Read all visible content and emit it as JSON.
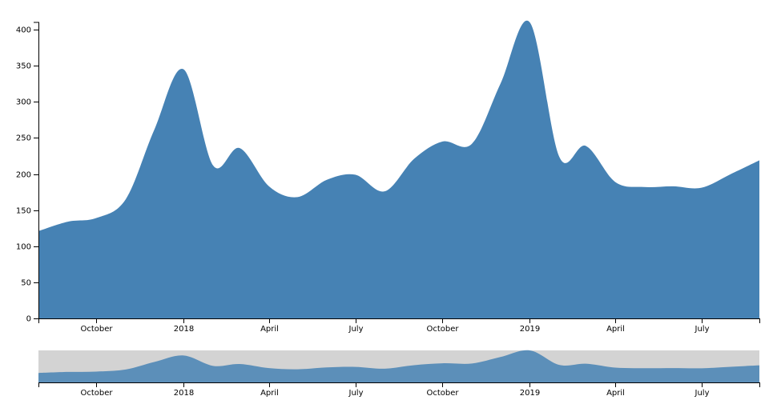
{
  "chart_data": {
    "type": "area",
    "title": "",
    "xlabel": "",
    "ylabel": "",
    "color": "#4682b4",
    "context_area_color": "#4682b4",
    "brush_color": "#d3d3d3",
    "y_ticks": [
      0,
      50,
      100,
      150,
      200,
      250,
      300,
      350,
      400
    ],
    "ylim": [
      0,
      410
    ],
    "xlim": [
      "2017-08-01",
      "2019-08-31"
    ],
    "x_ticks": [
      {
        "date": "2017-10-01",
        "label": "October"
      },
      {
        "date": "2018-01-01",
        "label": "2018"
      },
      {
        "date": "2018-04-01",
        "label": "April"
      },
      {
        "date": "2018-07-01",
        "label": "July"
      },
      {
        "date": "2018-10-01",
        "label": "October"
      },
      {
        "date": "2019-01-01",
        "label": "2019"
      },
      {
        "date": "2019-04-01",
        "label": "April"
      },
      {
        "date": "2019-07-01",
        "label": "July"
      }
    ],
    "points": [
      {
        "x": "2017-08-01",
        "y": 121
      },
      {
        "x": "2017-09-01",
        "y": 134
      },
      {
        "x": "2017-10-01",
        "y": 139
      },
      {
        "x": "2017-11-01",
        "y": 165
      },
      {
        "x": "2017-12-01",
        "y": 261
      },
      {
        "x": "2018-01-01",
        "y": 345
      },
      {
        "x": "2018-02-01",
        "y": 212
      },
      {
        "x": "2018-03-01",
        "y": 236
      },
      {
        "x": "2018-04-01",
        "y": 183
      },
      {
        "x": "2018-05-01",
        "y": 168
      },
      {
        "x": "2018-06-01",
        "y": 192
      },
      {
        "x": "2018-07-01",
        "y": 199
      },
      {
        "x": "2018-08-01",
        "y": 176
      },
      {
        "x": "2018-09-01",
        "y": 221
      },
      {
        "x": "2018-10-01",
        "y": 245
      },
      {
        "x": "2018-11-01",
        "y": 242
      },
      {
        "x": "2018-12-01",
        "y": 325
      },
      {
        "x": "2019-01-01",
        "y": 410
      },
      {
        "x": "2019-02-01",
        "y": 224
      },
      {
        "x": "2019-03-01",
        "y": 239
      },
      {
        "x": "2019-04-01",
        "y": 189
      },
      {
        "x": "2019-05-01",
        "y": 182
      },
      {
        "x": "2019-06-01",
        "y": 183
      },
      {
        "x": "2019-07-01",
        "y": 181
      },
      {
        "x": "2019-08-01",
        "y": 200
      },
      {
        "x": "2019-08-31",
        "y": 219
      }
    ],
    "brush_range": [
      "2017-08-01",
      "2019-08-31"
    ]
  }
}
